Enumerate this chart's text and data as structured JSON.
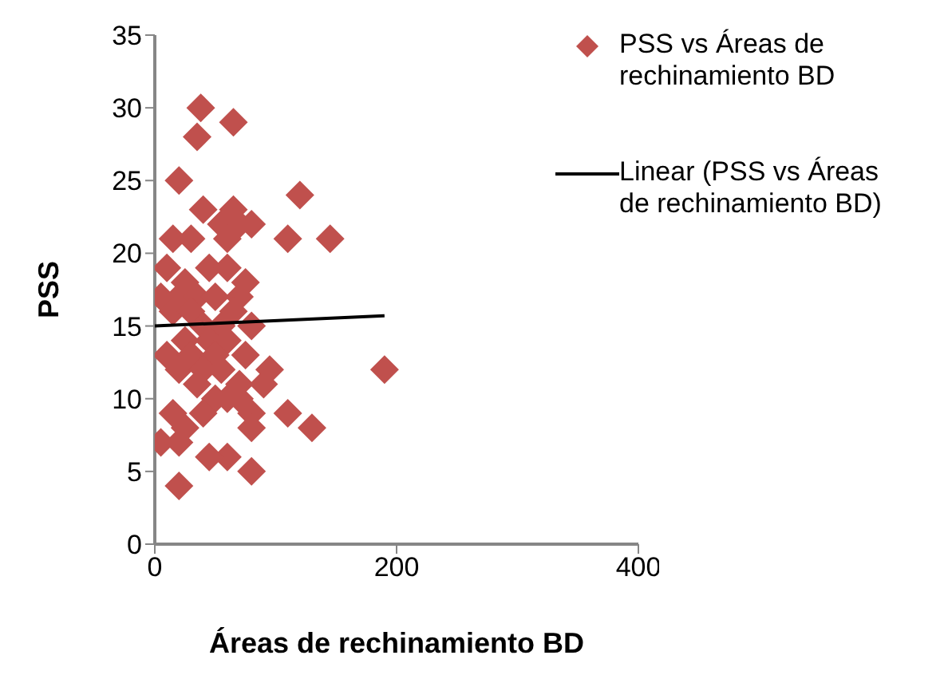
{
  "chart_data": {
    "type": "scatter",
    "xlabel": "Áreas de rechinamiento BD",
    "ylabel": "PSS",
    "xlim": [
      0,
      400
    ],
    "xticks": [
      0,
      200,
      400
    ],
    "ylim": [
      0,
      35
    ],
    "yticks": [
      0,
      5,
      10,
      15,
      20,
      25,
      30,
      35
    ],
    "legend": "right",
    "marker": "diamond",
    "series": [
      {
        "name": "PSS vs Áreas de rechinamiento BD",
        "color": "#c0504d",
        "x": [
          38,
          65,
          35,
          20,
          120,
          40,
          65,
          55,
          80,
          70,
          15,
          110,
          145,
          30,
          60,
          5,
          10,
          25,
          45,
          60,
          75,
          20,
          35,
          50,
          70,
          15,
          30,
          65,
          40,
          55,
          80,
          10,
          25,
          45,
          60,
          30,
          50,
          75,
          20,
          40,
          55,
          95,
          190,
          35,
          70,
          90,
          50,
          60,
          70,
          15,
          40,
          80,
          110,
          25,
          130,
          80,
          5,
          20,
          60,
          45,
          80,
          20
        ],
        "values": [
          30,
          29,
          28,
          25,
          24,
          23,
          23,
          22,
          22,
          22,
          21,
          21,
          21,
          21,
          21,
          17,
          19,
          18,
          19,
          19,
          18,
          17,
          17,
          17,
          17,
          16,
          16,
          16,
          15,
          15,
          15,
          13,
          14,
          14,
          14,
          13,
          13,
          13,
          12,
          12,
          12,
          12,
          12,
          11,
          11,
          11,
          10,
          10,
          10,
          9,
          9,
          9,
          9,
          8,
          8,
          8,
          7,
          7,
          6,
          6,
          5,
          4
        ]
      },
      {
        "name": "Linear (PSS vs Áreas de rechinamiento BD)",
        "type": "line",
        "color": "#000000",
        "marker": "none",
        "x": [
          0,
          190
        ],
        "values": [
          15,
          15.7
        ]
      }
    ]
  }
}
